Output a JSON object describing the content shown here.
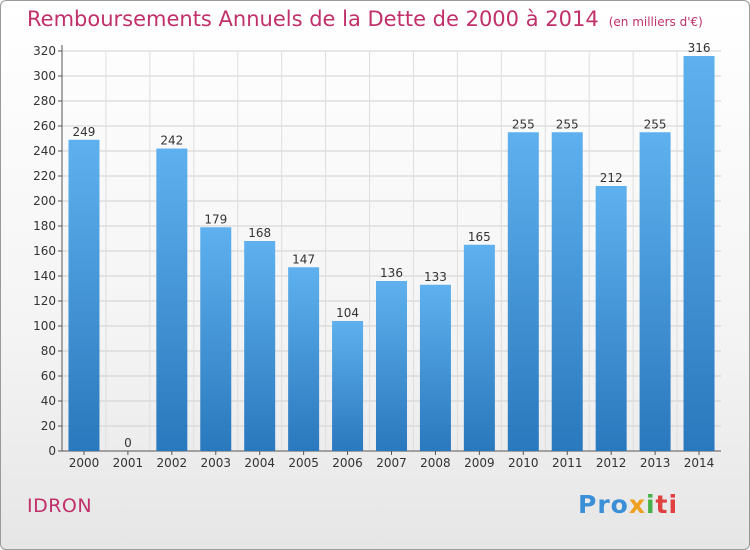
{
  "chart_data": {
    "type": "bar",
    "title": "Remboursements Annuels de la Dette de 2000 à 2014",
    "subtitle": "(en milliers d'€)",
    "categories": [
      "2000",
      "2001",
      "2002",
      "2003",
      "2004",
      "2005",
      "2006",
      "2007",
      "2008",
      "2009",
      "2010",
      "2011",
      "2012",
      "2013",
      "2014"
    ],
    "values": [
      249,
      0,
      242,
      179,
      168,
      147,
      104,
      136,
      133,
      165,
      255,
      255,
      212,
      255,
      316
    ],
    "ylim": [
      0,
      320
    ],
    "yticks": [
      0,
      20,
      40,
      60,
      80,
      100,
      120,
      140,
      160,
      180,
      200,
      220,
      240,
      260,
      280,
      300,
      320
    ],
    "grid": true,
    "bar_color": "#4aa3e6",
    "bar_color_dark": "#2a78bd"
  },
  "footer": {
    "commune": "IDRON",
    "logo_parts": [
      "Pro",
      "x",
      "i",
      "ti"
    ]
  }
}
